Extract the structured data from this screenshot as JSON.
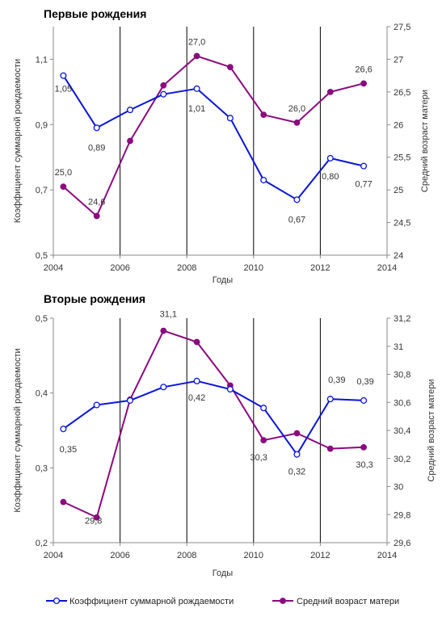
{
  "legend": {
    "tfr_label": "Коэффициент суммарной рождаемости",
    "age_label": "Средний возраст матери"
  },
  "colors": {
    "tfr": "#0a14d8",
    "age": "#8b0a7e"
  },
  "chart_data": [
    {
      "type": "line",
      "title": "Первые рождения",
      "xlabel": "Годы",
      "ylabel_left": "Коэффициент суммарной рождаемости",
      "ylabel_right": "Средний возраст матери",
      "xlim": [
        2004,
        2014
      ],
      "x_ticks": [
        "2004",
        "2006",
        "2008",
        "2010",
        "2012",
        "2014"
      ],
      "ylim_left": [
        0.5,
        1.2
      ],
      "y_ticks_left": [
        "0,5",
        "0,7",
        "0,9",
        "1,1"
      ],
      "ylim_right": [
        24,
        27.5
      ],
      "y_ticks_right": [
        "24",
        "24,5",
        "25",
        "25,5",
        "26",
        "26,5",
        "27",
        "27,5"
      ],
      "vertical_grid": [
        2006,
        2008,
        2010,
        2012
      ],
      "series": [
        {
          "name": "Коэффициент суммарной рождаемости",
          "axis": "left",
          "marker": "open",
          "x": [
            2004.3,
            2005.3,
            2006.3,
            2007.3,
            2008.3,
            2009.3,
            2010.3,
            2011.3,
            2012.3,
            2013.3
          ],
          "values": [
            1.05,
            0.89,
            0.945,
            0.993,
            1.01,
            0.92,
            0.73,
            0.67,
            0.797,
            0.773
          ],
          "labels": [
            "1,05",
            "0,89",
            "",
            "",
            "1,01",
            "",
            "",
            "0,67",
            "0,80",
            "0,77"
          ]
        },
        {
          "name": "Средний возраст матери",
          "axis": "right",
          "marker": "filled",
          "x": [
            2004.3,
            2005.3,
            2006.3,
            2007.3,
            2008.3,
            2009.3,
            2010.3,
            2011.3,
            2012.3,
            2013.3
          ],
          "values": [
            25.05,
            24.6,
            25.75,
            26.6,
            27.05,
            26.88,
            26.15,
            26.03,
            26.5,
            26.63
          ],
          "labels": [
            "25,0",
            "24,6",
            "",
            "",
            "27,0",
            "",
            "",
            "26,0",
            "",
            "26,6"
          ]
        }
      ]
    },
    {
      "type": "line",
      "title": "Вторые рождения",
      "xlabel": "Годы",
      "ylabel_left": "Коэффициент суммарной рождаемости",
      "ylabel_right": "Средний возраст матери",
      "xlim": [
        2004,
        2014
      ],
      "x_ticks": [
        "2004",
        "2006",
        "2008",
        "2010",
        "2012",
        "2014"
      ],
      "ylim_left": [
        0.2,
        0.5
      ],
      "y_ticks_left": [
        "0,2",
        "0,3",
        "0,4",
        "0,5"
      ],
      "ylim_right": [
        29.6,
        31.2
      ],
      "y_ticks_right": [
        "29,6",
        "29,8",
        "30",
        "30,2",
        "30,4",
        "30,6",
        "30,8",
        "31",
        "31,2"
      ],
      "vertical_grid": [
        2006,
        2008,
        2010,
        2012
      ],
      "series": [
        {
          "name": "Коэффициент суммарной рождаемости",
          "axis": "left",
          "marker": "open",
          "x": [
            2004.3,
            2005.3,
            2006.3,
            2007.3,
            2008.3,
            2009.3,
            2010.3,
            2011.3,
            2012.3,
            2013.3
          ],
          "values": [
            0.352,
            0.384,
            0.39,
            0.408,
            0.416,
            0.405,
            0.38,
            0.318,
            0.392,
            0.39
          ],
          "labels": [
            "0,35",
            "",
            "",
            "",
            "0,42",
            "",
            "",
            "0,32",
            "0,39",
            "0,39"
          ]
        },
        {
          "name": "Средний возраст матери",
          "axis": "right",
          "marker": "filled",
          "x": [
            2004.3,
            2005.3,
            2006.3,
            2007.3,
            2008.3,
            2009.3,
            2010.3,
            2011.3,
            2012.3,
            2013.3
          ],
          "values": [
            29.89,
            29.78,
            30.62,
            31.11,
            31.03,
            30.72,
            30.33,
            30.38,
            30.27,
            30.28
          ],
          "labels": [
            "",
            "29,8",
            "",
            "31,1",
            "",
            "",
            "30,3",
            "",
            "",
            "30,3"
          ]
        }
      ]
    }
  ]
}
